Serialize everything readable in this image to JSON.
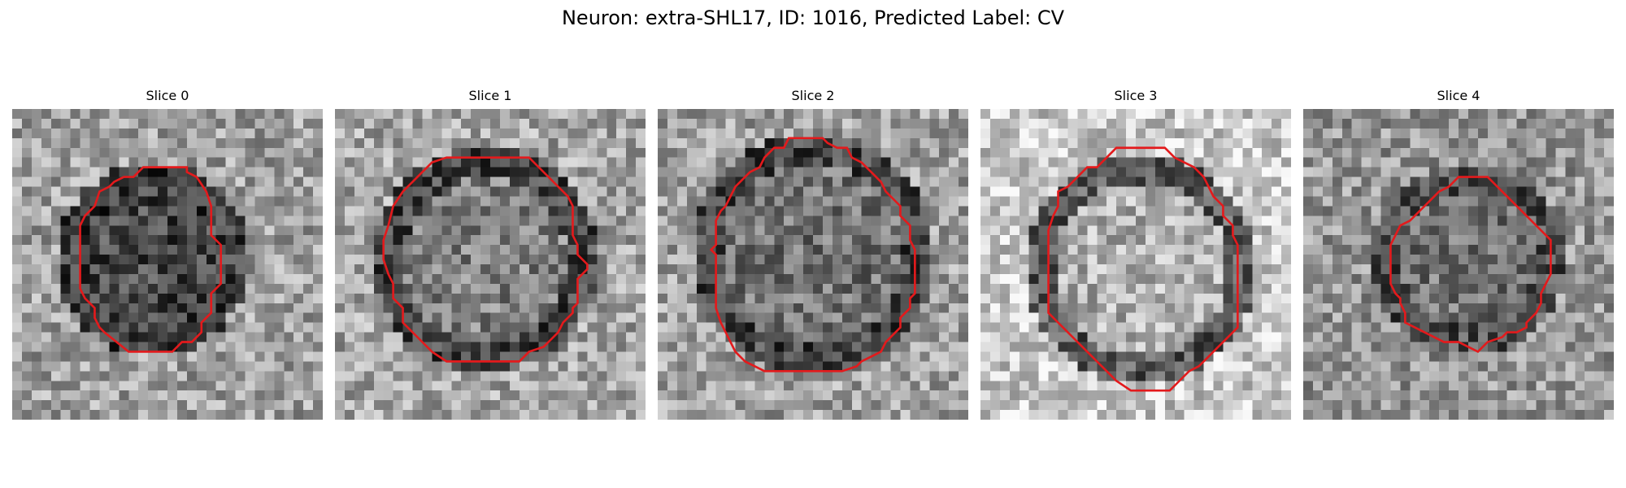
{
  "figure": {
    "title": "Neuron: extra-SHL17, ID: 1016, Predicted Label: CV"
  },
  "panels": [
    {
      "title": "Slice 0",
      "contour_color": "#e31a1c"
    },
    {
      "title": "Slice 1",
      "contour_color": "#e31a1c"
    },
    {
      "title": "Slice 2",
      "contour_color": "#e31a1c"
    },
    {
      "title": "Slice 3",
      "contour_color": "#e31a1c"
    },
    {
      "title": "Slice 4",
      "contour_color": "#e31a1c"
    }
  ],
  "image": {
    "colormap": "grayscale",
    "grid": "32x32 pixels"
  }
}
